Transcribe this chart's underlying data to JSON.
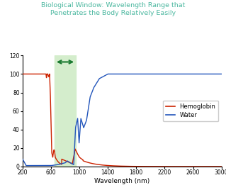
{
  "title_line1": "Biological Window: Wavelength Range that",
  "title_line2": "Penetrates the Body Relatively Easily",
  "title_color": "#4cb8a0",
  "xlabel": "Wavelength (nm)",
  "ylabel_ticks": [
    0,
    20,
    40,
    60,
    80,
    100,
    120
  ],
  "xlim": [
    200,
    3000
  ],
  "ylim": [
    0,
    120
  ],
  "xticks": [
    200,
    600,
    1000,
    1400,
    1800,
    2200,
    2600,
    3000
  ],
  "bio_window_x1": 650,
  "bio_window_x2": 950,
  "bio_window_color": "#d4edcc",
  "arrow_color": "#1a7a30",
  "hemo_color": "#cc2200",
  "water_color": "#2255bb",
  "legend_hemo": "Hemoglobin",
  "legend_water": "Water",
  "background_color": "#ffffff"
}
